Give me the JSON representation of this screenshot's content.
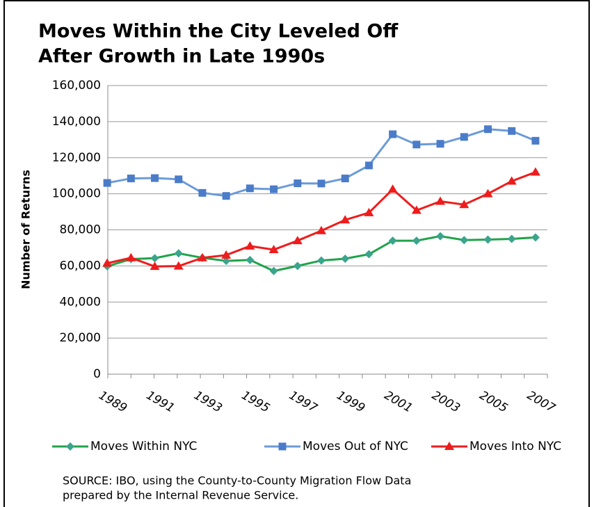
{
  "chart_data": {
    "type": "line",
    "title": [
      "Moves Within the City Leveled Off",
      "After Growth in Late 1990s"
    ],
    "y_label": "Number of Returns",
    "categories": [
      "1989",
      null,
      "1991",
      null,
      "1993",
      null,
      "1995",
      null,
      "1997",
      null,
      "1999",
      null,
      "2001",
      null,
      "2003",
      null,
      "2005",
      null,
      "2007"
    ],
    "series": [
      {
        "name": "Moves Within NYC",
        "color": "#1fa34a",
        "marker": "diamond",
        "marker_color": "#3aa58c",
        "values": [
          59800,
          63800,
          64300,
          67000,
          64500,
          62800,
          63300,
          57200,
          60000,
          63000,
          64000,
          66500,
          74000,
          74000,
          76500,
          74300,
          74600,
          75000,
          75800
        ]
      },
      {
        "name": "Moves Out of NYC",
        "color": "#6b9bd8",
        "marker": "square",
        "marker_color": "#4a7cc9",
        "values": [
          106000,
          108500,
          108700,
          108000,
          100500,
          98800,
          103000,
          102500,
          105800,
          105700,
          108500,
          115700,
          133000,
          127300,
          127700,
          131500,
          135800,
          134800,
          129400
        ]
      },
      {
        "name": "Moves Into NYC",
        "color": "#ee1c1c",
        "marker": "triangle",
        "marker_color": "#ee1c1c",
        "values": [
          61500,
          64500,
          59700,
          59900,
          64500,
          66000,
          71000,
          69000,
          74000,
          79500,
          85500,
          89500,
          102500,
          90800,
          95800,
          94000,
          100000,
          107000,
          112000
        ]
      }
    ],
    "ylim": [
      0,
      160000
    ],
    "yticks": [
      0,
      {
        "value": 20000,
        "label": "20,000"
      },
      {
        "value": 40000,
        "label": "40,000"
      },
      {
        "value": 60000,
        "label": "60,000"
      },
      {
        "value": 80000,
        "label": "80,000"
      },
      {
        "value": 100000,
        "label": "100,000"
      },
      {
        "value": 120000,
        "label": "120,000"
      },
      {
        "value": 140000,
        "label": "140,000"
      },
      {
        "value": 160000,
        "label": "160,000"
      }
    ],
    "grid": true,
    "legend": "bottom",
    "source": [
      "SOURCE:  IBO, using the County-to-County Migration Flow Data",
      "prepared by the Internal Revenue Service."
    ]
  }
}
